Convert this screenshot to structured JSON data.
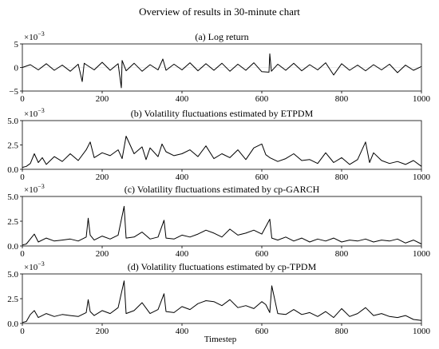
{
  "figure_title": "Overview of results in 30-minute chart",
  "xlabel": "Timestep",
  "exponent_label": "×10",
  "exponent_power": "−3",
  "line_color": "#000000",
  "chart_data": [
    {
      "type": "line",
      "title": "(a) Log return",
      "xlabel": "",
      "ylabel": "",
      "scale_factor": 0.001,
      "xlim": [
        0,
        1000
      ],
      "ylim": [
        -5,
        5
      ],
      "xticks": [
        "0",
        "200",
        "400",
        "600",
        "800",
        "1000"
      ],
      "yticks": [
        "−5",
        "0",
        "5"
      ],
      "series": [
        {
          "x": [
            0,
            20,
            40,
            60,
            80,
            100,
            120,
            140,
            150,
            155,
            160,
            180,
            200,
            220,
            240,
            248,
            250,
            260,
            280,
            300,
            320,
            340,
            352,
            360,
            380,
            400,
            420,
            440,
            460,
            480,
            500,
            520,
            540,
            560,
            580,
            600,
            618,
            620,
            624,
            640,
            660,
            680,
            700,
            720,
            740,
            760,
            780,
            800,
            820,
            840,
            860,
            880,
            900,
            920,
            940,
            960,
            980,
            1000
          ],
          "values": [
            0.0,
            0.6,
            -0.5,
            0.8,
            -0.6,
            0.5,
            -0.8,
            0.7,
            -3.0,
            0.9,
            0.6,
            -0.5,
            1.1,
            -0.6,
            0.8,
            -4.3,
            1.5,
            -0.7,
            0.9,
            -0.8,
            0.6,
            -0.5,
            1.8,
            -0.6,
            0.7,
            -0.5,
            1.0,
            -0.7,
            0.8,
            -0.6,
            0.9,
            -0.8,
            0.7,
            -0.6,
            1.0,
            -0.9,
            -1.0,
            2.9,
            -0.8,
            0.7,
            -0.6,
            0.9,
            -0.7,
            0.6,
            -0.5,
            1.0,
            -1.6,
            0.8,
            -0.6,
            0.5,
            -0.7,
            0.6,
            -0.5,
            0.7,
            -1.1,
            0.5,
            -0.6,
            0.2
          ]
        }
      ]
    },
    {
      "type": "line",
      "title": "(b) Volatility fluctuations estimated by ETPDM",
      "xlabel": "",
      "ylabel": "",
      "scale_factor": 0.001,
      "xlim": [
        0,
        1000
      ],
      "ylim": [
        0,
        5
      ],
      "xticks": [
        "0",
        "200",
        "400",
        "600",
        "800",
        "1000"
      ],
      "yticks": [
        "0.0",
        "2.5",
        "5.0"
      ],
      "series": [
        {
          "x": [
            0,
            10,
            20,
            30,
            40,
            50,
            60,
            80,
            100,
            120,
            140,
            160,
            170,
            180,
            200,
            220,
            240,
            250,
            260,
            280,
            300,
            310,
            320,
            340,
            350,
            360,
            380,
            400,
            420,
            440,
            460,
            480,
            500,
            520,
            540,
            560,
            580,
            600,
            610,
            620,
            640,
            660,
            680,
            700,
            720,
            740,
            760,
            780,
            800,
            820,
            840,
            860,
            870,
            880,
            900,
            920,
            940,
            960,
            980,
            1000
          ],
          "values": [
            0.2,
            0.3,
            0.6,
            1.6,
            0.7,
            1.2,
            0.5,
            1.3,
            0.8,
            1.6,
            0.9,
            2.0,
            2.8,
            1.2,
            1.7,
            1.4,
            2.0,
            1.1,
            3.4,
            1.6,
            2.3,
            1.0,
            2.2,
            1.3,
            2.6,
            1.8,
            1.4,
            1.6,
            2.0,
            1.3,
            2.4,
            1.1,
            1.6,
            1.2,
            2.0,
            1.0,
            2.2,
            2.6,
            1.5,
            1.2,
            0.8,
            1.1,
            1.6,
            0.9,
            1.0,
            0.6,
            1.7,
            0.7,
            1.2,
            0.5,
            1.0,
            2.8,
            0.7,
            1.7,
            0.9,
            0.6,
            0.8,
            0.5,
            0.9,
            0.3
          ]
        }
      ]
    },
    {
      "type": "line",
      "title": "(c) Volatility fluctuations estimated by cp-GARCH",
      "xlabel": "",
      "ylabel": "",
      "scale_factor": 0.001,
      "xlim": [
        0,
        1000
      ],
      "ylim": [
        0,
        5
      ],
      "xticks": [
        "0",
        "200",
        "400",
        "600",
        "800",
        "1000"
      ],
      "yticks": [
        "0.0",
        "2.5",
        "5.0"
      ],
      "series": [
        {
          "x": [
            0,
            10,
            20,
            30,
            40,
            60,
            80,
            100,
            120,
            140,
            160,
            165,
            170,
            180,
            200,
            220,
            240,
            255,
            260,
            280,
            300,
            320,
            340,
            355,
            360,
            380,
            400,
            420,
            440,
            460,
            480,
            500,
            520,
            540,
            560,
            580,
            600,
            620,
            625,
            640,
            660,
            680,
            700,
            720,
            740,
            760,
            780,
            800,
            820,
            840,
            860,
            880,
            900,
            920,
            940,
            960,
            980,
            1000
          ],
          "values": [
            0.1,
            0.2,
            0.7,
            1.2,
            0.4,
            0.8,
            0.5,
            0.6,
            0.7,
            0.5,
            0.9,
            2.8,
            1.1,
            0.6,
            1.0,
            0.7,
            1.1,
            4.0,
            0.8,
            0.9,
            1.4,
            0.7,
            0.9,
            2.6,
            0.8,
            0.7,
            1.1,
            0.9,
            1.2,
            1.6,
            1.3,
            0.9,
            1.7,
            1.1,
            1.3,
            1.6,
            1.2,
            2.7,
            0.8,
            0.6,
            0.9,
            0.5,
            0.8,
            0.4,
            0.7,
            0.5,
            0.8,
            0.4,
            0.6,
            0.5,
            0.7,
            0.4,
            0.6,
            0.5,
            0.7,
            0.3,
            0.6,
            0.2
          ]
        }
      ]
    },
    {
      "type": "line",
      "title": "(d) Volatility fluctuations estimated by cp-TPDM",
      "xlabel": "Timestep",
      "ylabel": "",
      "scale_factor": 0.001,
      "xlim": [
        0,
        1000
      ],
      "ylim": [
        0,
        5
      ],
      "xticks": [
        "0",
        "200",
        "400",
        "600",
        "800",
        "1000"
      ],
      "yticks": [
        "0.0",
        "2.5",
        "5.0"
      ],
      "series": [
        {
          "x": [
            0,
            10,
            20,
            30,
            40,
            60,
            80,
            100,
            120,
            140,
            160,
            165,
            170,
            180,
            200,
            220,
            240,
            255,
            260,
            280,
            300,
            320,
            340,
            355,
            360,
            380,
            400,
            420,
            440,
            460,
            480,
            500,
            520,
            540,
            560,
            580,
            600,
            610,
            620,
            625,
            640,
            660,
            680,
            700,
            720,
            740,
            760,
            780,
            800,
            820,
            840,
            860,
            880,
            900,
            920,
            940,
            960,
            980,
            1000
          ],
          "values": [
            0.1,
            0.2,
            0.9,
            1.3,
            0.6,
            1.0,
            0.7,
            0.9,
            0.8,
            0.7,
            1.1,
            2.4,
            1.2,
            0.8,
            1.3,
            1.0,
            1.6,
            4.3,
            1.0,
            1.3,
            2.1,
            1.0,
            1.4,
            3.0,
            1.2,
            1.1,
            1.7,
            1.4,
            2.0,
            2.3,
            2.2,
            1.8,
            2.4,
            1.6,
            1.8,
            1.5,
            2.2,
            1.9,
            1.1,
            3.8,
            1.0,
            0.9,
            1.4,
            0.9,
            1.1,
            0.7,
            1.2,
            0.6,
            1.5,
            0.7,
            1.0,
            1.6,
            0.8,
            1.0,
            0.7,
            0.6,
            0.8,
            0.4,
            0.3
          ]
        }
      ]
    }
  ]
}
